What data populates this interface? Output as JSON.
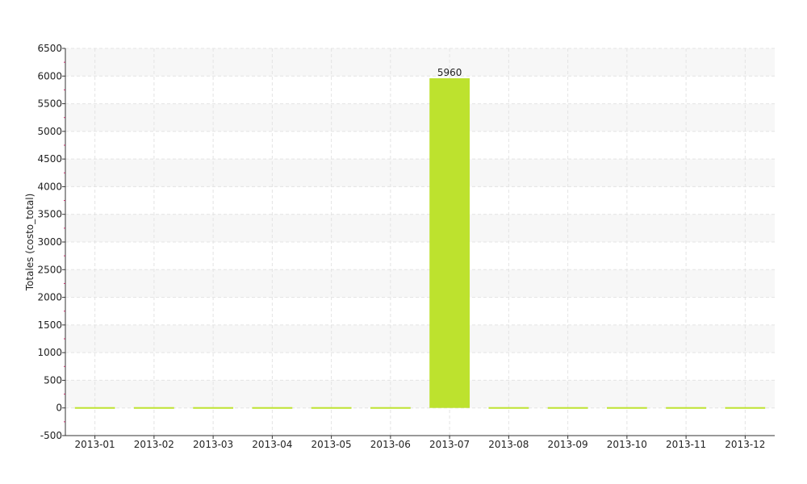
{
  "chart_data": {
    "type": "bar",
    "title": "",
    "xlabel": "",
    "ylabel": "Totales (costo_total)",
    "categories": [
      "2013-01",
      "2013-02",
      "2013-03",
      "2013-04",
      "2013-05",
      "2013-06",
      "2013-07",
      "2013-08",
      "2013-09",
      "2013-10",
      "2013-11",
      "2013-12"
    ],
    "values": [
      0,
      0,
      0,
      0,
      0,
      0,
      5960,
      0,
      0,
      0,
      0,
      0
    ],
    "data_labels": [
      "",
      "",
      "",
      "",
      "",
      "",
      "5960",
      "",
      "",
      "",
      "",
      ""
    ],
    "ylim": [
      -500,
      6500
    ],
    "yticks": [
      -500,
      0,
      500,
      1000,
      1500,
      2000,
      2500,
      3000,
      3500,
      4000,
      4500,
      5000,
      5500,
      6000,
      6500
    ],
    "ytick_labels": [
      "-500",
      "0",
      "500",
      "1000",
      "1500",
      "2000",
      "2500",
      "3000",
      "3500",
      "4000",
      "4500",
      "5000",
      "5500",
      "6000",
      "6500"
    ],
    "grid": true,
    "legend": "none",
    "colors": {
      "bar": "#bde22e",
      "band": "#f7f7f7",
      "grid": "#e4e4e4",
      "axis": "#333333",
      "minor_tick": "#c0306a"
    }
  }
}
